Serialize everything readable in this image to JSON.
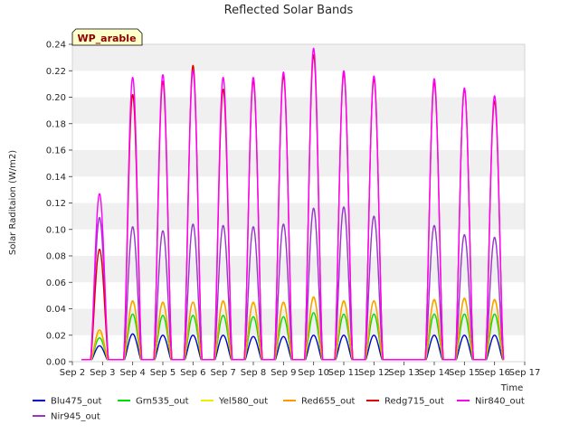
{
  "chart_data": {
    "type": "line",
    "title": "Reflected Solar Bands",
    "site_label": "WP_arable",
    "xlabel": "Time",
    "ylabel": "Solar Raditaion (W/m2)",
    "xlim": [
      2,
      17
    ],
    "ylim": [
      0,
      0.24
    ],
    "x_tick_values": [
      2,
      3,
      4,
      5,
      6,
      7,
      8,
      9,
      10,
      11,
      12,
      13,
      14,
      15,
      16,
      17
    ],
    "x_tick_labels": [
      "Sep 2",
      "Sep 3",
      "Sep 4",
      "Sep 5",
      "Sep 6",
      "Sep 7",
      "Sep 8",
      "Sep 9",
      "Sep 10",
      "Sep 11",
      "Sep 12",
      "Sep 13",
      "Sep 14",
      "Sep 15",
      "Sep 16",
      "Sep 17"
    ],
    "y_tick_values": [
      0,
      0.02,
      0.04,
      0.06,
      0.08,
      0.1,
      0.12,
      0.14,
      0.16,
      0.18,
      0.2,
      0.22,
      0.24
    ],
    "y_tick_labels": [
      "0.00",
      "0.02",
      "0.04",
      "0.06",
      "0.08",
      "0.10",
      "0.12",
      "0.14",
      "0.16",
      "0.18",
      "0.20",
      "0.22",
      "0.24"
    ],
    "grid": "horizontal bands",
    "legend_position": "bottom",
    "gap_days": [
      13
    ],
    "days": [
      2.9,
      4.0,
      5.0,
      6.0,
      7.0,
      8.0,
      9.0,
      10.0,
      11.0,
      12.0,
      14.0,
      15.0,
      16.0
    ],
    "series": [
      {
        "name": "Blu475_out",
        "color": "#0000cc",
        "peaks": [
          0.012,
          0.021,
          0.02,
          0.02,
          0.02,
          0.019,
          0.019,
          0.02,
          0.02,
          0.02,
          0.02,
          0.02,
          0.02
        ]
      },
      {
        "name": "Grn535_out",
        "color": "#00dd00",
        "peaks": [
          0.018,
          0.036,
          0.035,
          0.035,
          0.035,
          0.034,
          0.034,
          0.037,
          0.036,
          0.036,
          0.036,
          0.036,
          0.036
        ]
      },
      {
        "name": "Yel580_out",
        "color": "#eeee00",
        "peaks": [
          0.022,
          0.045,
          0.044,
          0.045,
          0.045,
          0.044,
          0.044,
          0.048,
          0.045,
          0.046,
          0.046,
          0.047,
          0.046
        ]
      },
      {
        "name": "Red655_out",
        "color": "#ff9900",
        "peaks": [
          0.024,
          0.046,
          0.045,
          0.045,
          0.046,
          0.045,
          0.045,
          0.049,
          0.046,
          0.046,
          0.047,
          0.048,
          0.047
        ]
      },
      {
        "name": "Redg715_out",
        "color": "#dd0000",
        "peaks": [
          0.085,
          0.202,
          0.212,
          0.224,
          0.206,
          0.212,
          0.216,
          0.232,
          0.218,
          0.214,
          0.211,
          0.206,
          0.197
        ]
      },
      {
        "name": "Nir840_out",
        "color": "#ff00ff",
        "peaks": [
          0.127,
          0.215,
          0.217,
          0.22,
          0.215,
          0.215,
          0.219,
          0.237,
          0.22,
          0.216,
          0.214,
          0.207,
          0.201
        ]
      },
      {
        "name": "Nir945_out",
        "color": "#9933cc",
        "peaks": [
          0.109,
          0.102,
          0.099,
          0.104,
          0.103,
          0.102,
          0.104,
          0.116,
          0.117,
          0.11,
          0.103,
          0.096,
          0.094
        ]
      }
    ]
  }
}
